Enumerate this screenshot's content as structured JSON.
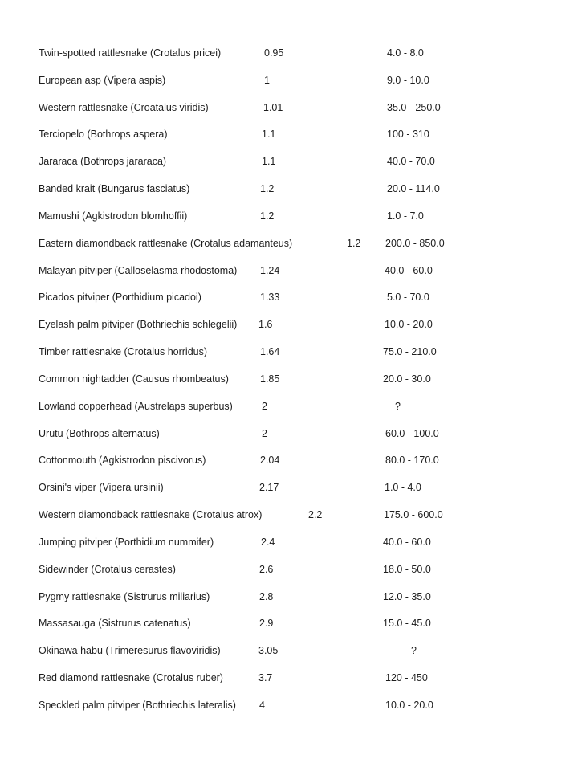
{
  "rows": [
    {
      "species": "Twin-spotted rattlesnake (Crotalus pricei)",
      "value": "0.95",
      "range": "4.0 - 8.0"
    },
    {
      "species": "European asp (Vipera aspis)",
      "value": "1",
      "range": "9.0 - 10.0"
    },
    {
      "species": "Western rattlesnake (Croatalus viridis)",
      "value": "1.01",
      "range": "35.0 - 250.0"
    },
    {
      "species": "Terciopelo (Bothrops aspera)",
      "value": "1.1",
      "range": "100 - 310"
    },
    {
      "species": "Jararaca (Bothrops jararaca)",
      "value": "1.1",
      "range": "40.0 - 70.0"
    },
    {
      "species": "Banded krait (Bungarus fasciatus)",
      "value": "1.2",
      "range": "20.0 - 114.0"
    },
    {
      "species": "Mamushi (Agkistrodon blomhoffii)",
      "value": "1.2",
      "range": "1.0 - 7.0"
    },
    {
      "species": "Eastern diamondback rattlesnake (Crotalus adamanteus)",
      "value": "1.2",
      "range": "200.0 - 850.0"
    },
    {
      "species": "Malayan pitviper (Calloselasma rhodostoma)",
      "value": "1.24",
      "range": "40.0 - 60.0"
    },
    {
      "species": "Picados pitviper (Porthidium picadoi)",
      "value": "1.33",
      "range": "5.0 - 70.0"
    },
    {
      "species": "Eyelash palm pitviper (Bothriechis schlegelii)",
      "value": "1.6",
      "range": "10.0 - 20.0"
    },
    {
      "species": "Timber rattlesnake (Crotalus horridus)",
      "value": "1.64",
      "range": "75.0 - 210.0"
    },
    {
      "species": "Common nightadder (Causus rhombeatus)",
      "value": "1.85",
      "range": "20.0 - 30.0"
    },
    {
      "species": "Lowland copperhead (Austrelaps superbus)",
      "value": "2",
      "range": "?"
    },
    {
      "species": "Urutu (Bothrops alternatus)",
      "value": "2",
      "range": "60.0 - 100.0"
    },
    {
      "species": "Cottonmouth (Agkistrodon piscivorus)",
      "value": "2.04",
      "range": "80.0 - 170.0"
    },
    {
      "species": "Orsini's viper (Vipera ursinii)",
      "value": "2.17",
      "range": "1.0 - 4.0"
    },
    {
      "species": "Western diamondback rattlesnake (Crotalus atrox)",
      "value": "2.2",
      "range": "175.0 - 600.0"
    },
    {
      "species": "Jumping pitviper (Porthidium nummifer)",
      "value": "2.4",
      "range": "40.0 - 60.0"
    },
    {
      "species": "Sidewinder (Crotalus cerastes)",
      "value": "2.6",
      "range": "18.0 - 50.0"
    },
    {
      "species": "Pygmy rattlesnake (Sistrurus miliarius)",
      "value": "2.8",
      "range": "12.0 - 35.0"
    },
    {
      "species": "Massasauga (Sistrurus catenatus)",
      "value": "2.9",
      "range": "15.0 - 45.0"
    },
    {
      "species": "Okinawa habu (Trimeresurus flavoviridis)",
      "value": "3.05",
      "range": "?"
    },
    {
      "species": "Red diamond rattlesnake (Crotalus ruber)",
      "value": "3.7",
      "range": "120 - 450"
    },
    {
      "species": "Speckled palm pitviper (Bothriechis lateralis)",
      "value": "4",
      "range": "10.0 - 20.0"
    }
  ]
}
